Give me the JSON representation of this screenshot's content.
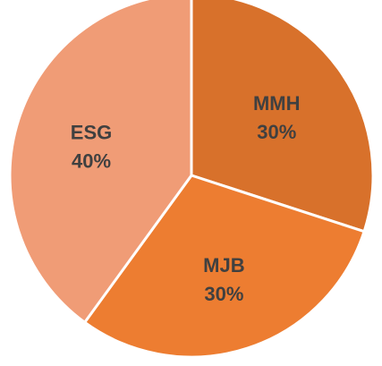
{
  "chart_data": {
    "type": "pie",
    "title": "",
    "slices": [
      {
        "label": "MMH",
        "value": 30,
        "value_label": "30%",
        "color": "#D8712B"
      },
      {
        "label": "MJB",
        "value": 30,
        "value_label": "30%",
        "color": "#ED7D31"
      },
      {
        "label": "ESG",
        "value": 40,
        "value_label": "40%",
        "color": "#F09C76"
      }
    ],
    "start_angle_deg": 0,
    "direction": "clockwise",
    "legend": "none",
    "separator_color": "#FFFFFF"
  }
}
